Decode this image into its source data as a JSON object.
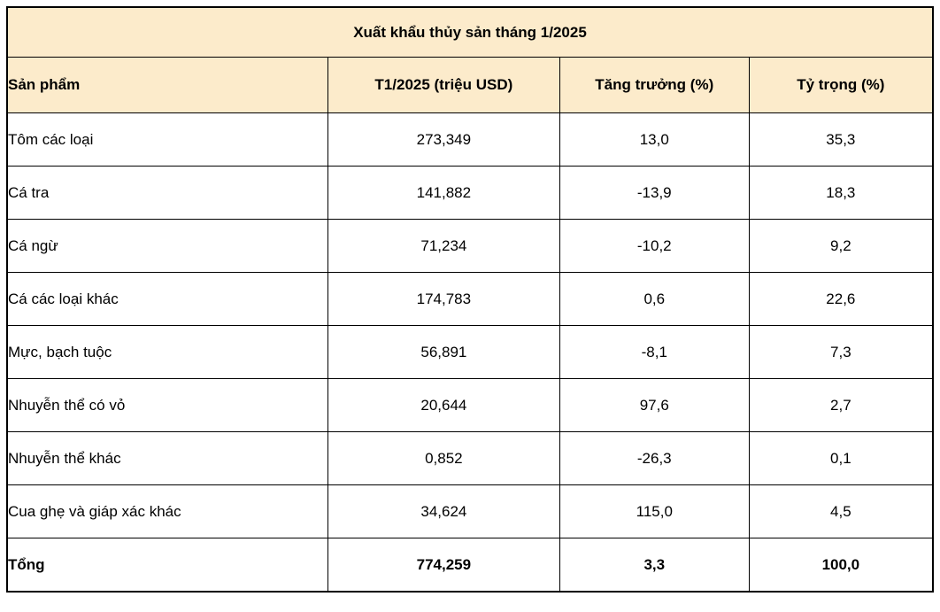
{
  "title": "Xuất khẩu thủy sản tháng 1/2025",
  "colors": {
    "header_bg": "#FCEBCB",
    "body_bg": "#FFFFFF",
    "border": "#000000",
    "text": "#000000"
  },
  "table": {
    "columns": [
      "Sản phẩm",
      "T1/2025 (triệu USD)",
      "Tăng trưởng (%)",
      "Tỷ trọng (%)"
    ],
    "rows": [
      [
        "Tôm các loại",
        "273,349",
        "13,0",
        "35,3"
      ],
      [
        "Cá tra",
        "141,882",
        "-13,9",
        "18,3"
      ],
      [
        "Cá ngừ",
        "71,234",
        "-10,2",
        "9,2"
      ],
      [
        "Cá các loại khác",
        "174,783",
        "0,6",
        "22,6"
      ],
      [
        "Mực, bạch tuộc",
        "56,891",
        "-8,1",
        "7,3"
      ],
      [
        "Nhuyễn thể có vỏ",
        "20,644",
        "97,6",
        "2,7"
      ],
      [
        "Nhuyễn thể khác",
        "0,852",
        "-26,3",
        "0,1"
      ],
      [
        "Cua ghẹ và giáp xác khác",
        "34,624",
        "115,0",
        "4,5"
      ]
    ],
    "total_row": [
      "Tổng",
      "774,259",
      "3,3",
      "100,0"
    ]
  },
  "chart_data": {
    "type": "table",
    "title": "Xuất khẩu thủy sản tháng 1/2025",
    "columns": [
      "Sản phẩm",
      "T1/2025 (triệu USD)",
      "Tăng trưởng (%)",
      "Tỷ trọng (%)"
    ],
    "rows": [
      {
        "product": "Tôm các loại",
        "value_trieu_usd": 273.349,
        "growth_pct": 13.0,
        "share_pct": 35.3
      },
      {
        "product": "Cá tra",
        "value_trieu_usd": 141.882,
        "growth_pct": -13.9,
        "share_pct": 18.3
      },
      {
        "product": "Cá ngừ",
        "value_trieu_usd": 71.234,
        "growth_pct": -10.2,
        "share_pct": 9.2
      },
      {
        "product": "Cá các loại khác",
        "value_trieu_usd": 174.783,
        "growth_pct": 0.6,
        "share_pct": 22.6
      },
      {
        "product": "Mực, bạch tuộc",
        "value_trieu_usd": 56.891,
        "growth_pct": -8.1,
        "share_pct": 7.3
      },
      {
        "product": "Nhuyễn thể có vỏ",
        "value_trieu_usd": 20.644,
        "growth_pct": 97.6,
        "share_pct": 2.7
      },
      {
        "product": "Nhuyễn thể khác",
        "value_trieu_usd": 0.852,
        "growth_pct": -26.3,
        "share_pct": 0.1
      },
      {
        "product": "Cua ghẹ và giáp xác khác",
        "value_trieu_usd": 34.624,
        "growth_pct": 115.0,
        "share_pct": 4.5
      }
    ],
    "total": {
      "product": "Tổng",
      "value_trieu_usd": 774.259,
      "growth_pct": 3.3,
      "share_pct": 100.0
    },
    "layout_hints": {
      "header_fill": "#FCEBCB",
      "grid": true,
      "value_alignment": "center"
    }
  }
}
